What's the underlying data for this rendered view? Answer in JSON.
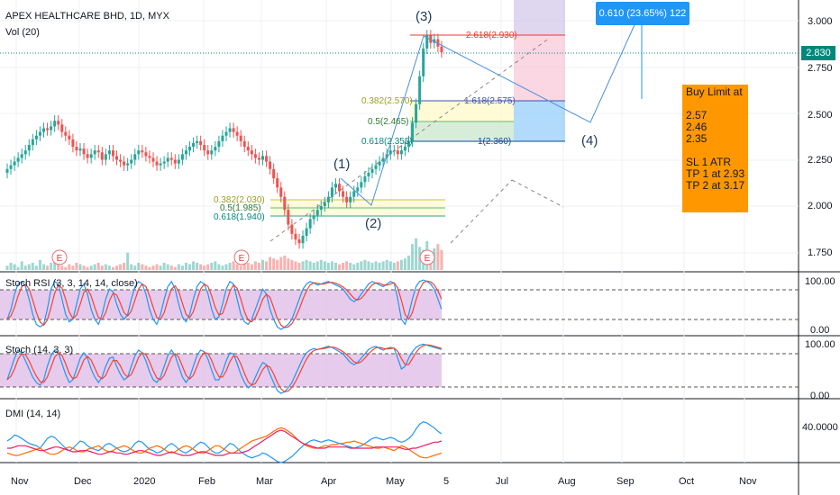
{
  "header": {
    "symbol": "APEX HEALTHCARE BHD, 1D, MYX",
    "volume_label": "Vol (20)"
  },
  "price_axis": {
    "ticks": [
      "3.000",
      "2.750",
      "2.500",
      "2.250",
      "2.000",
      "1.750"
    ],
    "current_price": "2.830"
  },
  "time_axis": {
    "labels": [
      "Nov",
      "Dec",
      "2020",
      "Feb",
      "Mar",
      "Apr",
      "May",
      "5",
      "Jul",
      "Aug",
      "Sep",
      "Oct",
      "Nov"
    ]
  },
  "earnings_marker": "E",
  "elliott_waves": [
    "(1)",
    "(2)",
    "(3)",
    "(4)"
  ],
  "fib_retracement_lower": [
    "0.382(2.030)",
    "0.5(1.985)",
    "0.618(1.940)"
  ],
  "fib_retracement_upper": [
    "0.382(2.570)",
    "0.5(2.465)",
    "0.618(2.355)"
  ],
  "fib_extension": [
    "2.618(2.930)",
    "1.618(2.575)",
    "1(2.360)"
  ],
  "projection_label": "0.610 (23.65%) 122",
  "trade_note": {
    "title": "Buy Limit at",
    "levels": [
      "2.57",
      "2.46",
      "2.35"
    ],
    "sl": "SL 1 ATR",
    "tp1": "TP 1 at 2.93",
    "tp2": "TP 2 at 3.17"
  },
  "panes": {
    "stoch_rsi": {
      "title": "Stoch RSI (3, 3, 14, 14, close)",
      "ticks": [
        "100.00",
        "0.00"
      ]
    },
    "stoch": {
      "title": "Stoch (14, 3, 3)",
      "ticks": [
        "100.00",
        "0.00"
      ]
    },
    "dmi": {
      "title": "DMI (14, 14)",
      "ticks": [
        "40.0000"
      ]
    }
  },
  "colors": {
    "up": "#26a69a",
    "down": "#ef5350",
    "band": "#e1bee7",
    "k_line": "#2196f3",
    "d_line": "#f44336",
    "plus_di": "#2196f3",
    "minus_di": "#ff6d00",
    "adx": "#e91e63",
    "note_bg": "#ff9800",
    "callout_bg": "#2196f3"
  },
  "chart_data": {
    "type": "candlestick",
    "title": "APEX HEALTHCARE BHD, 1D, MYX",
    "ylim": [
      1.6,
      3.1
    ],
    "close_series": [
      2.2,
      2.22,
      2.24,
      2.26,
      2.28,
      2.3,
      2.33,
      2.36,
      2.38,
      2.4,
      2.42,
      2.41,
      2.43,
      2.46,
      2.44,
      2.4,
      2.38,
      2.36,
      2.32,
      2.3,
      2.31,
      2.28,
      2.26,
      2.28,
      2.3,
      2.29,
      2.25,
      2.28,
      2.3,
      2.27,
      2.25,
      2.24,
      2.22,
      2.23,
      2.25,
      2.28,
      2.3,
      2.29,
      2.27,
      2.26,
      2.24,
      2.22,
      2.23,
      2.24,
      2.26,
      2.25,
      2.23,
      2.25,
      2.28,
      2.3,
      2.32,
      2.34,
      2.35,
      2.33,
      2.3,
      2.28,
      2.3,
      2.32,
      2.35,
      2.38,
      2.4,
      2.42,
      2.4,
      2.38,
      2.35,
      2.32,
      2.3,
      2.28,
      2.26,
      2.25,
      2.27,
      2.24,
      2.2,
      2.15,
      2.1,
      2.05,
      1.98,
      1.9,
      1.85,
      1.82,
      1.8,
      1.84,
      1.88,
      1.93,
      1.95,
      1.98,
      2.0,
      2.02,
      2.05,
      2.1,
      2.12,
      2.08,
      2.05,
      2.02,
      2.05,
      2.08,
      2.1,
      2.13,
      2.16,
      2.18,
      2.2,
      2.22,
      2.24,
      2.26,
      2.28,
      2.3,
      2.3,
      2.28,
      2.3,
      2.32,
      2.35,
      2.45,
      2.55,
      2.7,
      2.85,
      2.92,
      2.88,
      2.9,
      2.86,
      2.83
    ],
    "volume_series": [
      3,
      5,
      4,
      2,
      6,
      3,
      4,
      5,
      3,
      7,
      4,
      3,
      5,
      6,
      4,
      3,
      2,
      4,
      3,
      5,
      4,
      3,
      2,
      3,
      4,
      5,
      3,
      4,
      3,
      2,
      3,
      4,
      5,
      12,
      4,
      3,
      5,
      4,
      3,
      2,
      3,
      4,
      3,
      5,
      4,
      3,
      2,
      4,
      3,
      5,
      4,
      6,
      5,
      4,
      3,
      4,
      5,
      6,
      4,
      3,
      4,
      5,
      6,
      4,
      3,
      8,
      5,
      4,
      6,
      5,
      7,
      6,
      9,
      8,
      7,
      9,
      10,
      8,
      7,
      6,
      5,
      6,
      7,
      6,
      5,
      6,
      7,
      6,
      5,
      6,
      5,
      4,
      5,
      6,
      5,
      4,
      5,
      6,
      7,
      6,
      5,
      6,
      5,
      6,
      7,
      6,
      5,
      6,
      7,
      8,
      10,
      18,
      22,
      16,
      14,
      20,
      12,
      15,
      18,
      14
    ],
    "stoch_rsi_k": [
      20,
      40,
      70,
      90,
      95,
      85,
      60,
      30,
      10,
      5,
      10,
      40,
      80,
      95,
      90,
      60,
      30,
      15,
      20,
      50,
      80,
      90,
      70,
      40,
      20,
      10,
      30,
      60,
      80,
      75,
      50,
      30,
      20,
      30,
      60,
      85,
      95,
      90,
      70,
      40,
      20,
      10,
      30,
      60,
      85,
      95,
      80,
      50,
      25,
      15,
      30,
      60,
      85,
      95,
      90,
      70,
      40,
      20,
      25,
      50,
      80,
      95,
      90,
      60,
      30,
      15,
      10,
      20,
      40,
      60,
      80,
      70,
      40,
      20,
      5,
      0,
      5,
      10,
      20,
      40,
      60,
      80,
      90,
      95,
      92,
      88,
      90,
      93,
      95,
      92,
      88,
      85,
      80,
      70,
      60,
      55,
      60,
      70,
      80,
      90,
      95,
      92,
      88,
      85,
      90,
      95,
      92,
      60,
      20,
      10,
      30,
      60,
      85,
      95,
      98,
      95,
      90,
      80,
      60,
      40
    ],
    "stoch_k": [
      30,
      50,
      70,
      85,
      80,
      65,
      50,
      35,
      25,
      20,
      30,
      55,
      75,
      85,
      80,
      60,
      40,
      25,
      30,
      50,
      70,
      80,
      70,
      50,
      35,
      25,
      35,
      55,
      70,
      72,
      55,
      40,
      30,
      35,
      55,
      75,
      85,
      80,
      65,
      45,
      30,
      25,
      35,
      55,
      75,
      85,
      75,
      55,
      35,
      25,
      35,
      55,
      75,
      85,
      82,
      68,
      48,
      30,
      30,
      45,
      65,
      80,
      78,
      60,
      40,
      25,
      15,
      20,
      35,
      50,
      62,
      58,
      40,
      25,
      10,
      5,
      8,
      15,
      25,
      40,
      55,
      70,
      80,
      85,
      88,
      86,
      88,
      90,
      92,
      90,
      86,
      82,
      78,
      70,
      62,
      58,
      62,
      70,
      78,
      86,
      90,
      92,
      88,
      85,
      88,
      90,
      88,
      70,
      50,
      55,
      70,
      82,
      90,
      94,
      96,
      94,
      92,
      90,
      88,
      86
    ],
    "dmi_plus": [
      28,
      30,
      33,
      32,
      30,
      28,
      26,
      25,
      24,
      22,
      26,
      30,
      32,
      31,
      28,
      25,
      22,
      20,
      22,
      25,
      28,
      27,
      24,
      22,
      21,
      20,
      22,
      25,
      26,
      24,
      22,
      20,
      19,
      20,
      22,
      26,
      28,
      27,
      24,
      21,
      20,
      18,
      19,
      21,
      24,
      26,
      24,
      21,
      19,
      18,
      20,
      22,
      25,
      27,
      26,
      23,
      20,
      18,
      18,
      20,
      23,
      26,
      25,
      22,
      19,
      17,
      15,
      14,
      15,
      16,
      18,
      17,
      15,
      13,
      11,
      10,
      11,
      13,
      15,
      18,
      21,
      24,
      26,
      28,
      29,
      28,
      27,
      28,
      29,
      28,
      27,
      26,
      25,
      24,
      23,
      22,
      23,
      24,
      26,
      28,
      30,
      31,
      30,
      29,
      30,
      31,
      30,
      28,
      27,
      28,
      30,
      33,
      38,
      42,
      44,
      43,
      41,
      39,
      36,
      34
    ],
    "dmi_minus": [
      18,
      17,
      16,
      16,
      17,
      18,
      19,
      20,
      21,
      22,
      20,
      18,
      17,
      17,
      18,
      20,
      22,
      23,
      22,
      20,
      19,
      19,
      21,
      22,
      23,
      24,
      22,
      20,
      19,
      20,
      22,
      23,
      24,
      23,
      21,
      19,
      18,
      18,
      20,
      22,
      23,
      24,
      23,
      21,
      19,
      18,
      19,
      21,
      23,
      24,
      23,
      21,
      19,
      18,
      18,
      20,
      22,
      24,
      24,
      22,
      20,
      18,
      18,
      20,
      22,
      24,
      26,
      28,
      29,
      30,
      31,
      32,
      34,
      36,
      38,
      39,
      38,
      36,
      34,
      31,
      28,
      26,
      24,
      23,
      22,
      22,
      23,
      24,
      24,
      25,
      25,
      26,
      26,
      27,
      27,
      28,
      27,
      26,
      25,
      24,
      23,
      22,
      22,
      23,
      22,
      21,
      20,
      22,
      24,
      23,
      21,
      19,
      17,
      15,
      14,
      14,
      15,
      16,
      17,
      18
    ],
    "dmi_adx": [
      22,
      22,
      23,
      24,
      24,
      24,
      23,
      22,
      21,
      20,
      20,
      21,
      22,
      23,
      23,
      22,
      21,
      20,
      19,
      19,
      20,
      20,
      20,
      19,
      18,
      17,
      17,
      18,
      19,
      19,
      18,
      18,
      17,
      17,
      18,
      19,
      20,
      20,
      19,
      18,
      17,
      16,
      16,
      17,
      18,
      19,
      18,
      17,
      16,
      16,
      16,
      17,
      18,
      19,
      19,
      18,
      17,
      16,
      16,
      16,
      17,
      18,
      18,
      18,
      18,
      19,
      20,
      22,
      24,
      26,
      28,
      30,
      32,
      34,
      36,
      37,
      36,
      34,
      32,
      30,
      28,
      26,
      25,
      24,
      23,
      22,
      22,
      22,
      23,
      23,
      23,
      23,
      23,
      23,
      22,
      22,
      22,
      22,
      22,
      22,
      22,
      23,
      23,
      23,
      23,
      23,
      23,
      23,
      22,
      21,
      21,
      22,
      22,
      23,
      24,
      25,
      26,
      27,
      27,
      28
    ]
  }
}
